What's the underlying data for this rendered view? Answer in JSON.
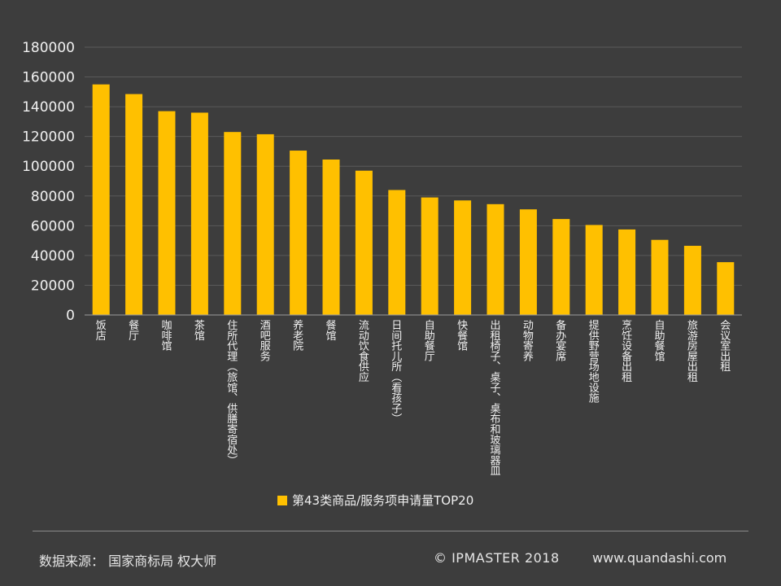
{
  "chart_data": {
    "type": "bar",
    "categories": [
      "饭店",
      "餐厅",
      "咖啡馆",
      "茶馆",
      "住所代理（旅馆、供膳寄宿处）",
      "酒吧服务",
      "养老院",
      "餐馆",
      "流动饮食供应",
      "日间托儿所（看孩子）",
      "自助餐厅",
      "快餐馆",
      "出租椅子、桌子、桌布和玻璃器皿",
      "动物寄养",
      "备办宴席",
      "提供野营场地设施",
      "烹饪设备出租",
      "自助餐馆",
      "旅游房屋出租",
      "会议室出租"
    ],
    "series": [
      {
        "name": "第43类商品/服务项申请量TOP20",
        "values": [
          155000,
          148500,
          137000,
          136000,
          123000,
          121500,
          110500,
          104500,
          97000,
          84000,
          79000,
          77000,
          74500,
          71000,
          64500,
          60500,
          57500,
          50500,
          46500,
          35500
        ]
      }
    ],
    "yticks": [
      "180000",
      "160000",
      "140000",
      "120000",
      "100000",
      "80000",
      "60000",
      "40000",
      "20000",
      "0"
    ],
    "ylim": [
      0,
      180000
    ],
    "bar_color": "#ffc000",
    "grid": true,
    "legend_position": "bottom"
  },
  "footer": {
    "source": "数据来源： 国家商标局  权大师",
    "copyright": "© IPMASTER  2018",
    "website": "www.quandashi.com"
  }
}
